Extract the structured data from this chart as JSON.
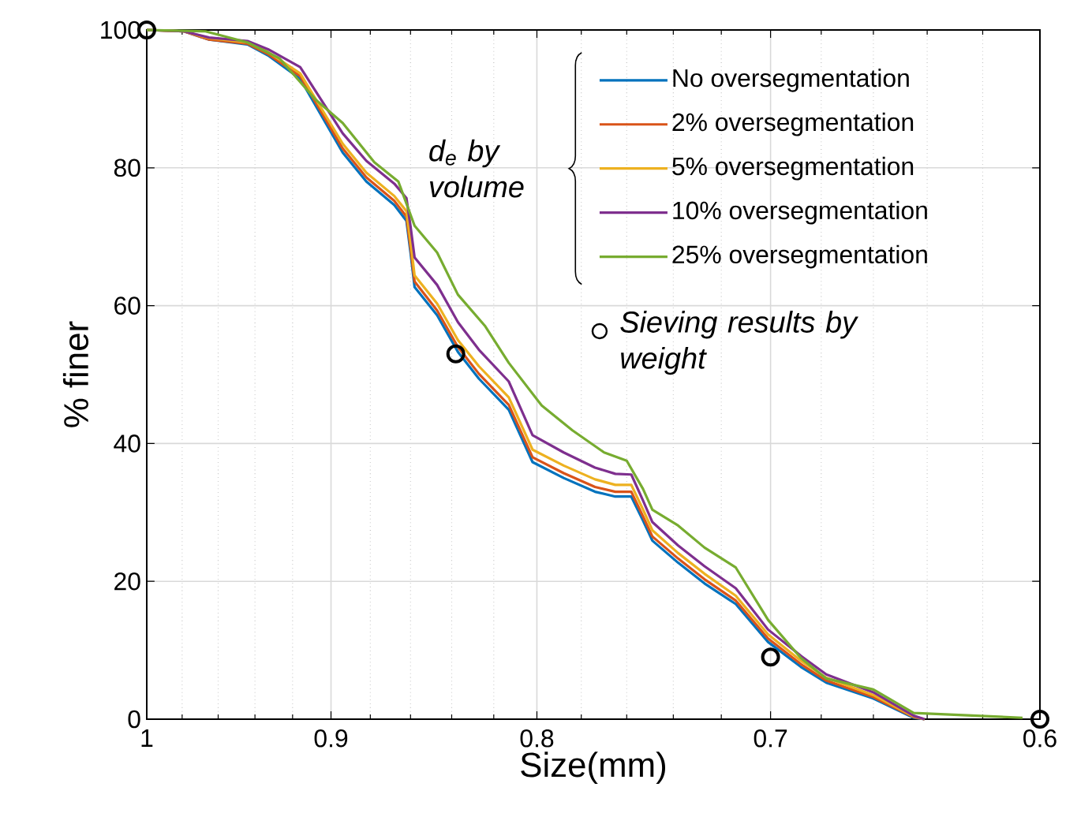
{
  "chart_data": {
    "type": "line",
    "xlabel": "Size(mm)",
    "ylabel": "% finer",
    "legend_title": "d$_{e}$ by volume",
    "log": "x",
    "grid": true,
    "legend": "top right",
    "xlim": [
      1,
      0.6
    ],
    "ylim": [
      0,
      100
    ],
    "xticks": [
      1,
      {
        "value": 0.98,
        "label": null
      },
      {
        "value": 0.96,
        "label": null
      },
      {
        "value": 0.94,
        "label": null
      },
      {
        "value": 0.92,
        "label": null
      },
      0.9,
      {
        "value": 0.88,
        "label": null
      },
      {
        "value": 0.86,
        "label": null
      },
      {
        "value": 0.84,
        "label": null
      },
      {
        "value": 0.82,
        "label": null
      },
      0.8,
      {
        "value": 0.78,
        "label": null
      },
      {
        "value": 0.76,
        "label": null
      },
      {
        "value": 0.74,
        "label": null
      },
      {
        "value": 0.72,
        "label": null
      },
      0.7,
      {
        "value": 0.68,
        "label": null
      },
      {
        "value": 0.66,
        "label": null
      },
      {
        "value": 0.64,
        "label": null
      },
      {
        "value": 0.62,
        "label": null
      },
      0.6
    ],
    "yticks": [
      0,
      20,
      40,
      60,
      80,
      100
    ],
    "series": [
      {
        "type": "line",
        "name": "No oversegmentation",
        "color": "#0072bd",
        "x": [
          1,
          0.979,
          0.965,
          0.944,
          0.933,
          0.916,
          0.894,
          0.882,
          0.868,
          0.862,
          0.86,
          0.858,
          0.847,
          0.837,
          0.827,
          0.813,
          0.802,
          0.788,
          0.774,
          0.765,
          0.758,
          0.753,
          0.749,
          0.738,
          0.727,
          0.714,
          0.701,
          0.688,
          0.678,
          0.66,
          0.645,
          0.641
        ],
        "values": [
          100,
          99.8,
          98.6,
          97.9,
          96.3,
          92.9,
          82.2,
          78.0,
          74.6,
          72.3,
          67.7,
          62.7,
          58.6,
          53.3,
          49.4,
          44.9,
          37.3,
          35.0,
          33.0,
          32.3,
          32.3,
          28.8,
          25.9,
          22.7,
          19.7,
          16.7,
          11.2,
          7.6,
          5.3,
          3.0,
          0.2,
          0
        ]
      },
      {
        "type": "line",
        "name": "2% oversegmentation",
        "color": "#d95319",
        "x": [
          1,
          0.979,
          0.965,
          0.944,
          0.933,
          0.916,
          0.894,
          0.882,
          0.868,
          0.862,
          0.86,
          0.858,
          0.847,
          0.837,
          0.827,
          0.813,
          0.802,
          0.788,
          0.774,
          0.765,
          0.758,
          0.753,
          0.749,
          0.738,
          0.727,
          0.714,
          0.701,
          0.688,
          0.678,
          0.66,
          0.645,
          0.641
        ],
        "values": [
          100,
          99.8,
          98.6,
          98.0,
          96.5,
          93.3,
          82.8,
          78.6,
          75.2,
          72.9,
          68.4,
          63.5,
          59.3,
          54.0,
          50.1,
          45.6,
          38.0,
          35.7,
          33.7,
          33.0,
          33.0,
          29.4,
          26.5,
          23.3,
          20.3,
          17.2,
          11.7,
          8.0,
          5.6,
          3.2,
          0.3,
          0
        ]
      },
      {
        "type": "line",
        "name": "5% oversegmentation",
        "color": "#edb120",
        "x": [
          1,
          0.979,
          0.965,
          0.944,
          0.933,
          0.916,
          0.894,
          0.882,
          0.868,
          0.862,
          0.86,
          0.858,
          0.847,
          0.837,
          0.827,
          0.813,
          0.802,
          0.788,
          0.774,
          0.765,
          0.758,
          0.753,
          0.749,
          0.738,
          0.727,
          0.714,
          0.701,
          0.688,
          0.678,
          0.66,
          0.645,
          0.641
        ],
        "values": [
          100,
          99.8,
          98.8,
          98.2,
          96.8,
          93.7,
          83.5,
          79.3,
          75.9,
          73.7,
          69.3,
          64.4,
          60.3,
          55.0,
          51.2,
          46.7,
          39.1,
          36.8,
          34.8,
          34.0,
          34.0,
          30.4,
          27.4,
          24.1,
          21.1,
          17.9,
          12.3,
          8.5,
          6.0,
          3.5,
          0.4,
          0
        ]
      },
      {
        "type": "line",
        "name": "10% oversegmentation",
        "color": "#7e2f8e",
        "x": [
          1,
          0.979,
          0.965,
          0.944,
          0.933,
          0.916,
          0.894,
          0.882,
          0.868,
          0.862,
          0.86,
          0.858,
          0.847,
          0.837,
          0.827,
          0.813,
          0.802,
          0.788,
          0.774,
          0.765,
          0.758,
          0.753,
          0.749,
          0.738,
          0.727,
          0.714,
          0.701,
          0.688,
          0.678,
          0.66,
          0.645,
          0.641
        ],
        "values": [
          100,
          99.8,
          98.9,
          98.4,
          97.2,
          94.6,
          85.0,
          81.0,
          77.7,
          75.6,
          71.5,
          67.0,
          63.0,
          57.6,
          53.6,
          49.0,
          41.2,
          38.7,
          36.5,
          35.6,
          35.5,
          31.7,
          28.6,
          25.2,
          22.2,
          19.0,
          13.0,
          9.2,
          6.5,
          3.9,
          0.5,
          0
        ]
      },
      {
        "type": "line",
        "name": "25% oversegmentation",
        "color": "#77ac30",
        "x": [
          1,
          0.967,
          0.944,
          0.927,
          0.908,
          0.894,
          0.878,
          0.866,
          0.858,
          0.847,
          0.837,
          0.824,
          0.813,
          0.798,
          0.784,
          0.77,
          0.76,
          0.753,
          0.749,
          0.738,
          0.727,
          0.714,
          0.701,
          0.688,
          0.678,
          0.66,
          0.645,
          0.606
        ],
        "values": [
          100,
          99.8,
          98.2,
          95.9,
          89.9,
          86.5,
          80.8,
          78.0,
          71.6,
          67.7,
          61.6,
          57.0,
          51.7,
          45.5,
          41.9,
          38.7,
          37.5,
          33.4,
          30.4,
          28.1,
          24.9,
          22.0,
          14.4,
          8.9,
          5.9,
          4.3,
          0.9,
          0.2
        ]
      },
      {
        "type": "scatter",
        "name": "Sieving results by weight",
        "color": "#000000",
        "marker": "circle",
        "x": [
          1,
          0.838,
          0.7,
          0.6
        ],
        "values": [
          100,
          53,
          9,
          0
        ]
      }
    ]
  }
}
